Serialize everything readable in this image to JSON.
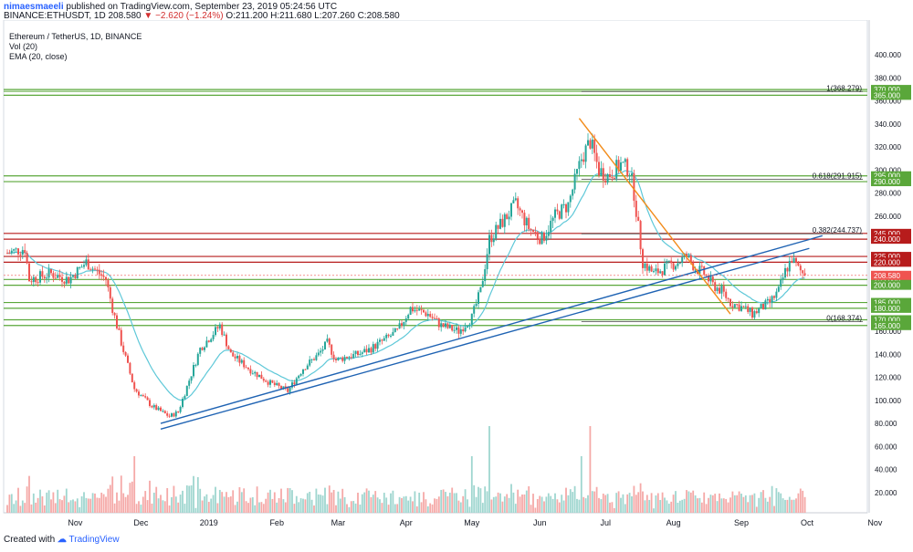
{
  "header": {
    "author": "nimaesmaeeli",
    "published_text": "published on TradingView.com, September 23, 2019 05:24:56 UTC",
    "symbol_line": "BINANCE:ETHUSDT, 1D",
    "last_price": "208.580",
    "change": "▼ −2.620 (−1.24%)",
    "ohlc": "O:211.200 H:211.680 L:207.260 C:208.580"
  },
  "footer": {
    "created_with": "Created with",
    "brand": "TradingView",
    "brand_icon": "tradingview-logo-icon"
  },
  "colors": {
    "up": "#26a69a",
    "down": "#ef5350",
    "vol_up": "#9fd6cf",
    "vol_down": "#f5a9a7",
    "ema": "#5ec8d8",
    "green_level": "#5aa73a",
    "red_level": "#b71c1c",
    "trend": "#1f63b3",
    "orange": "#f28c1b",
    "last_price": "#ef5350"
  },
  "chart_data": {
    "type": "candlestick",
    "title": "Ethereum / TetherUS, 1D, BINANCE",
    "legend": [
      "Ethereum / TetherUS, 1D, BINANCE",
      "Vol (20)",
      "EMA (20, close)"
    ],
    "y_ticks": [
      20,
      40,
      60,
      80,
      100,
      120,
      140,
      160,
      180,
      200,
      220,
      240,
      260,
      280,
      300,
      320,
      340,
      360,
      380,
      400
    ],
    "ylim": [
      0,
      420
    ],
    "x_ticks": [
      {
        "label": "Nov",
        "d": 31
      },
      {
        "label": "Dec",
        "d": 61
      },
      {
        "label": "2019",
        "d": 92
      },
      {
        "label": "Feb",
        "d": 123
      },
      {
        "label": "Mar",
        "d": 151
      },
      {
        "label": "Apr",
        "d": 182
      },
      {
        "label": "May",
        "d": 212
      },
      {
        "label": "Jun",
        "d": 243
      },
      {
        "label": "Jul",
        "d": 273
      },
      {
        "label": "Aug",
        "d": 304
      },
      {
        "label": "Sep",
        "d": 335
      },
      {
        "label": "Oct",
        "d": 365
      },
      {
        "label": "Nov",
        "d": 396
      }
    ],
    "x_range_days": [
      0,
      415
    ],
    "anchors": [
      [
        0,
        228
      ],
      [
        8,
        232
      ],
      [
        10,
        205
      ],
      [
        20,
        210
      ],
      [
        28,
        205
      ],
      [
        36,
        220
      ],
      [
        45,
        205
      ],
      [
        48,
        180
      ],
      [
        52,
        150
      ],
      [
        58,
        110
      ],
      [
        66,
        95
      ],
      [
        74,
        86
      ],
      [
        78,
        90
      ],
      [
        88,
        145
      ],
      [
        97,
        165
      ],
      [
        102,
        140
      ],
      [
        112,
        125
      ],
      [
        120,
        115
      ],
      [
        128,
        108
      ],
      [
        135,
        128
      ],
      [
        142,
        140
      ],
      [
        146,
        150
      ],
      [
        150,
        135
      ],
      [
        155,
        138
      ],
      [
        160,
        140
      ],
      [
        166,
        145
      ],
      [
        178,
        160
      ],
      [
        184,
        180
      ],
      [
        192,
        175
      ],
      [
        198,
        165
      ],
      [
        206,
        160
      ],
      [
        212,
        172
      ],
      [
        216,
        195
      ],
      [
        220,
        240
      ],
      [
        226,
        255
      ],
      [
        232,
        270
      ],
      [
        238,
        250
      ],
      [
        244,
        240
      ],
      [
        250,
        260
      ],
      [
        256,
        270
      ],
      [
        262,
        310
      ],
      [
        266,
        325
      ],
      [
        270,
        300
      ],
      [
        274,
        295
      ],
      [
        280,
        305
      ],
      [
        284,
        300
      ],
      [
        286,
        280
      ],
      [
        290,
        220
      ],
      [
        295,
        210
      ],
      [
        300,
        215
      ],
      [
        306,
        220
      ],
      [
        310,
        225
      ],
      [
        314,
        215
      ],
      [
        318,
        210
      ],
      [
        322,
        200
      ],
      [
        326,
        195
      ],
      [
        330,
        185
      ],
      [
        336,
        180
      ],
      [
        340,
        175
      ],
      [
        344,
        180
      ],
      [
        348,
        185
      ],
      [
        352,
        195
      ],
      [
        355,
        212
      ],
      [
        358,
        223
      ],
      [
        361,
        214
      ],
      [
        364,
        209
      ]
    ],
    "last_day": 364,
    "last_price": 208.58,
    "horizontal_levels": [
      {
        "value": 370,
        "label": "370.000",
        "color": "green",
        "double": true
      },
      {
        "value": 365,
        "label": "365.000",
        "color": "green",
        "double": false
      },
      {
        "value": 295,
        "label": "295.000",
        "color": "green",
        "double": false
      },
      {
        "value": 290,
        "label": "290.000",
        "color": "green",
        "double": false
      },
      {
        "value": 245,
        "label": "245.000",
        "color": "red",
        "double": false
      },
      {
        "value": 240,
        "label": "240.000",
        "color": "red",
        "double": false
      },
      {
        "value": 225,
        "label": "225.000",
        "color": "red",
        "double": false
      },
      {
        "value": 220,
        "label": "220.000",
        "color": "red",
        "double": false
      },
      {
        "value": 205,
        "label": "205.000",
        "color": "green",
        "double": false
      },
      {
        "value": 200,
        "label": "200.000",
        "color": "green",
        "double": false
      },
      {
        "value": 185,
        "label": "185.000",
        "color": "green",
        "double": false
      },
      {
        "value": 180,
        "label": "180.000",
        "color": "green",
        "double": false
      },
      {
        "value": 170,
        "label": "170.000",
        "color": "green",
        "double": false
      },
      {
        "value": 165,
        "label": "165.000",
        "color": "green",
        "double": false
      }
    ],
    "fib_levels": [
      {
        "text": "1(368.279)",
        "value": 368.279
      },
      {
        "text": "0.618(291.915)",
        "value": 291.915
      },
      {
        "text": "0.382(244.737)",
        "value": 244.737
      },
      {
        "text": "0(168.374)",
        "value": 168.374
      }
    ],
    "fib_start_day": 262,
    "trend_lines": [
      {
        "d1": 70,
        "p1": 75,
        "d2": 366,
        "p2": 232,
        "color": "trend"
      },
      {
        "d1": 70,
        "p1": 80,
        "d2": 372,
        "p2": 243,
        "color": "trend"
      },
      {
        "d1": 261,
        "p1": 345,
        "d2": 330,
        "p2": 175,
        "color": "orange"
      }
    ],
    "volume_scale_max": 420
  }
}
